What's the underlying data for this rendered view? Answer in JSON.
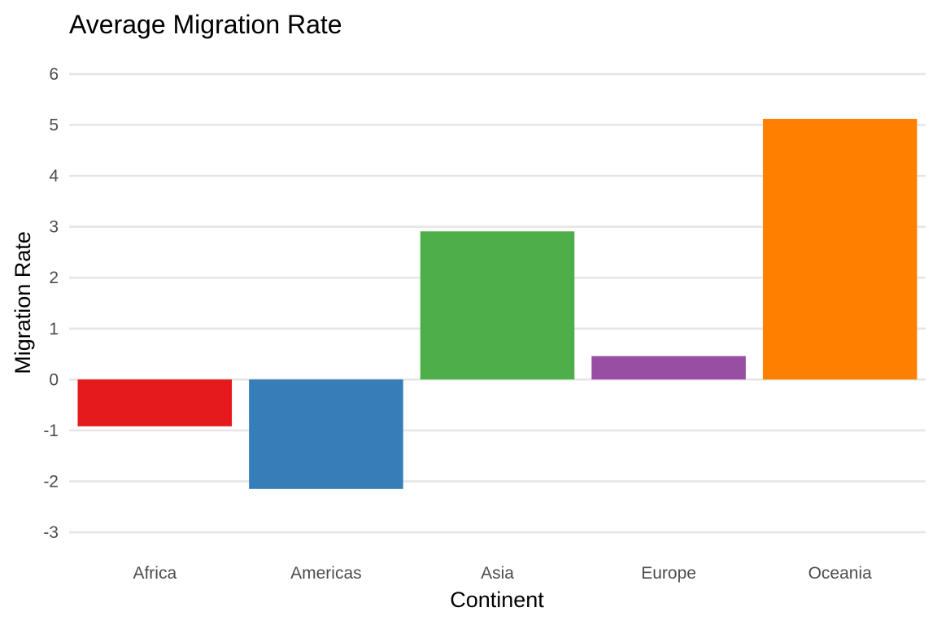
{
  "chart_data": {
    "type": "bar",
    "title": "Average Migration Rate",
    "xlabel": "Continent",
    "ylabel": "Migration Rate",
    "categories": [
      "Africa",
      "Americas",
      "Asia",
      "Europe",
      "Oceania"
    ],
    "values": [
      -0.92,
      -2.15,
      2.91,
      0.46,
      5.12
    ],
    "colors": [
      "#E41A1C",
      "#377EB8",
      "#4DAF4A",
      "#984EA3",
      "#FF7F00"
    ],
    "ylim": [
      -3,
      6
    ],
    "yticks": [
      "-3",
      "-2",
      "-1",
      "0",
      "1",
      "2",
      "3",
      "4",
      "5",
      "6"
    ],
    "grid": true,
    "legend": "none"
  }
}
